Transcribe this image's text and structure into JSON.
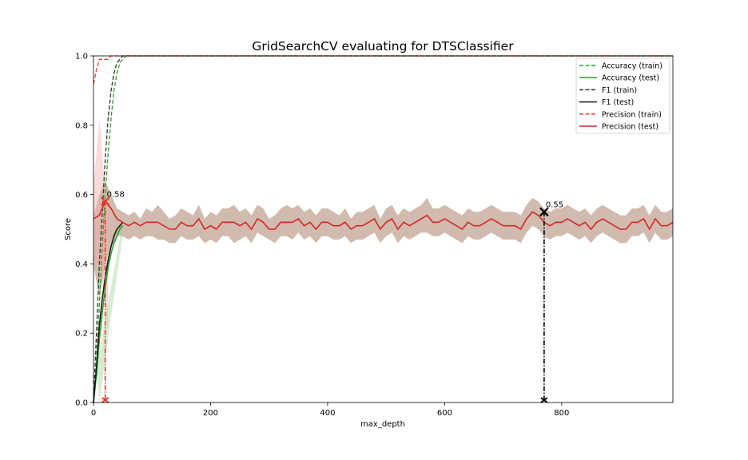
{
  "chart_data": {
    "type": "line",
    "title": "GridSearchCV evaluating for DTSClassifier",
    "xlabel": "max_depth",
    "ylabel": "Score",
    "xlim": [
      0,
      990
    ],
    "ylim": [
      0,
      1.0
    ],
    "xticks": [
      0,
      200,
      400,
      600,
      800
    ],
    "xtick_labels": [
      "0",
      "200",
      "400",
      "600",
      "800"
    ],
    "yticks": [
      0,
      0.2,
      0.4,
      0.6,
      0.8,
      1.0
    ],
    "ytick_labels": [
      "0.0",
      "0.2",
      "0.4",
      "0.6",
      "0.8",
      "1.0"
    ],
    "grid": false,
    "legend_position": "top-right",
    "colors": {
      "accuracy": "#2ca02c",
      "f1": "#333333",
      "precision": "#e8372a",
      "band": "#a9836c"
    },
    "series": [
      {
        "name": "Accuracy (train)",
        "style": "dashed",
        "color": "#2ca02c",
        "x": [
          0,
          5,
          10,
          15,
          20,
          25,
          30,
          35,
          40,
          45,
          50,
          55,
          60,
          990
        ],
        "values": [
          0.0,
          0.12,
          0.28,
          0.45,
          0.6,
          0.72,
          0.82,
          0.9,
          0.95,
          0.98,
          0.99,
          1.0,
          1.0,
          1.0
        ]
      },
      {
        "name": "Accuracy (test)",
        "style": "solid",
        "color": "#2ca02c",
        "x": [
          0,
          5,
          10,
          15,
          20,
          25,
          30,
          35,
          40,
          45,
          50
        ],
        "values": [
          0.0,
          0.08,
          0.18,
          0.26,
          0.33,
          0.39,
          0.43,
          0.46,
          0.48,
          0.5,
          0.51
        ]
      },
      {
        "name": "F1 (train)",
        "style": "dashed",
        "color": "#333333",
        "x": [
          0,
          5,
          10,
          15,
          20,
          25,
          30,
          35,
          40,
          45,
          50,
          55,
          990
        ],
        "values": [
          0.0,
          0.2,
          0.4,
          0.55,
          0.7,
          0.82,
          0.9,
          0.95,
          0.98,
          0.99,
          1.0,
          1.0,
          1.0
        ]
      },
      {
        "name": "F1 (test)",
        "style": "solid",
        "color": "#1a1a1a",
        "x": [
          0,
          5,
          10,
          15,
          20,
          25,
          30,
          35,
          40,
          45,
          50
        ],
        "values": [
          0.0,
          0.1,
          0.22,
          0.3,
          0.36,
          0.41,
          0.45,
          0.48,
          0.5,
          0.51,
          0.52
        ]
      },
      {
        "name": "Precision (train)",
        "style": "dashed",
        "color": "#e8372a",
        "x": [
          0,
          5,
          10,
          15,
          20,
          25,
          30,
          35,
          40,
          50,
          60,
          990
        ],
        "values": [
          0.92,
          0.96,
          0.99,
          0.99,
          0.99,
          0.99,
          1.0,
          1.0,
          1.0,
          1.0,
          1.0,
          1.0
        ]
      },
      {
        "name": "Precision (test)",
        "style": "solid",
        "color": "#d62728",
        "x_start": 0,
        "x_step": 10,
        "values": [
          0.53,
          0.54,
          0.58,
          0.56,
          0.53,
          0.52,
          0.51,
          0.52,
          0.51,
          0.52,
          0.52,
          0.52,
          0.51,
          0.5,
          0.5,
          0.52,
          0.51,
          0.51,
          0.53,
          0.5,
          0.51,
          0.5,
          0.52,
          0.52,
          0.52,
          0.51,
          0.52,
          0.5,
          0.53,
          0.52,
          0.5,
          0.5,
          0.52,
          0.52,
          0.52,
          0.53,
          0.51,
          0.52,
          0.5,
          0.52,
          0.52,
          0.51,
          0.51,
          0.52,
          0.5,
          0.51,
          0.51,
          0.52,
          0.53,
          0.5,
          0.52,
          0.53,
          0.5,
          0.52,
          0.51,
          0.52,
          0.53,
          0.54,
          0.52,
          0.52,
          0.53,
          0.52,
          0.51,
          0.5,
          0.52,
          0.51,
          0.51,
          0.52,
          0.53,
          0.52,
          0.51,
          0.51,
          0.51,
          0.5,
          0.53,
          0.55,
          0.54,
          0.52,
          0.51,
          0.52,
          0.52,
          0.53,
          0.52,
          0.51,
          0.52,
          0.5,
          0.52,
          0.53,
          0.52,
          0.51,
          0.5,
          0.5,
          0.52,
          0.52,
          0.53,
          0.5,
          0.53,
          0.51,
          0.51,
          0.52
        ]
      },
      {
        "name": "test score band",
        "style": "band",
        "color": "#a9836c",
        "x_start": 0,
        "x_step": 10,
        "upper": [
          0.54,
          0.6,
          0.64,
          0.6,
          0.56,
          0.55,
          0.54,
          0.55,
          0.53,
          0.56,
          0.55,
          0.57,
          0.55,
          0.53,
          0.54,
          0.56,
          0.55,
          0.54,
          0.57,
          0.53,
          0.55,
          0.54,
          0.56,
          0.56,
          0.57,
          0.55,
          0.56,
          0.54,
          0.57,
          0.56,
          0.53,
          0.54,
          0.56,
          0.57,
          0.56,
          0.57,
          0.55,
          0.56,
          0.54,
          0.56,
          0.56,
          0.55,
          0.54,
          0.56,
          0.53,
          0.55,
          0.55,
          0.56,
          0.57,
          0.53,
          0.56,
          0.57,
          0.54,
          0.56,
          0.55,
          0.56,
          0.57,
          0.59,
          0.56,
          0.56,
          0.57,
          0.56,
          0.55,
          0.54,
          0.56,
          0.55,
          0.55,
          0.56,
          0.57,
          0.56,
          0.55,
          0.55,
          0.55,
          0.54,
          0.57,
          0.59,
          0.58,
          0.56,
          0.55,
          0.56,
          0.56,
          0.57,
          0.56,
          0.55,
          0.56,
          0.54,
          0.56,
          0.57,
          0.56,
          0.55,
          0.54,
          0.54,
          0.56,
          0.56,
          0.57,
          0.54,
          0.57,
          0.55,
          0.55,
          0.56
        ],
        "lower": [
          0.4,
          0.3,
          0.4,
          0.45,
          0.48,
          0.48,
          0.47,
          0.48,
          0.47,
          0.48,
          0.48,
          0.47,
          0.47,
          0.46,
          0.46,
          0.48,
          0.47,
          0.47,
          0.48,
          0.46,
          0.47,
          0.46,
          0.48,
          0.48,
          0.46,
          0.47,
          0.48,
          0.46,
          0.49,
          0.48,
          0.47,
          0.46,
          0.48,
          0.48,
          0.47,
          0.49,
          0.47,
          0.48,
          0.46,
          0.48,
          0.48,
          0.47,
          0.47,
          0.48,
          0.46,
          0.47,
          0.47,
          0.48,
          0.49,
          0.46,
          0.48,
          0.49,
          0.46,
          0.48,
          0.47,
          0.48,
          0.49,
          0.49,
          0.48,
          0.48,
          0.49,
          0.48,
          0.47,
          0.46,
          0.48,
          0.47,
          0.47,
          0.48,
          0.49,
          0.48,
          0.47,
          0.47,
          0.47,
          0.46,
          0.49,
          0.51,
          0.5,
          0.48,
          0.47,
          0.48,
          0.48,
          0.49,
          0.48,
          0.47,
          0.48,
          0.46,
          0.48,
          0.49,
          0.48,
          0.47,
          0.46,
          0.46,
          0.48,
          0.48,
          0.49,
          0.46,
          0.49,
          0.47,
          0.47,
          0.48
        ]
      }
    ],
    "annotations": [
      {
        "x": 20,
        "y": 0.58,
        "text": "0.58",
        "color": "#e8372a"
      },
      {
        "x": 770,
        "y": 0.55,
        "text": "0.55",
        "color": "#000000"
      }
    ]
  }
}
